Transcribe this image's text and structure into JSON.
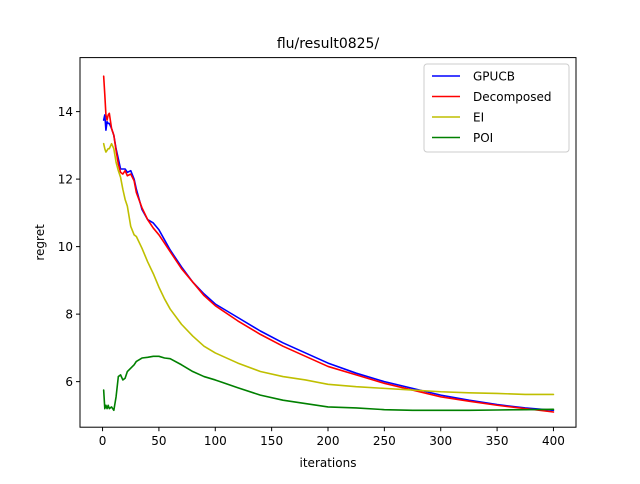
{
  "chart_data": {
    "type": "line",
    "title": "flu/result0825/",
    "xlabel": "iterations",
    "ylabel": "regret",
    "xlim": [
      -20,
      420
    ],
    "ylim": [
      4.65,
      15.6
    ],
    "xticks": [
      0,
      50,
      100,
      150,
      200,
      250,
      300,
      350,
      400
    ],
    "yticks": [
      6,
      8,
      10,
      12,
      14
    ],
    "grid": false,
    "legend_position": "top-right",
    "series": [
      {
        "name": "GPUCB",
        "color": "#0000ff",
        "x": [
          1,
          2,
          3,
          4,
          5,
          6,
          8,
          10,
          12,
          14,
          16,
          18,
          20,
          22,
          25,
          28,
          30,
          35,
          40,
          45,
          50,
          55,
          60,
          70,
          80,
          90,
          100,
          120,
          140,
          160,
          180,
          200,
          225,
          250,
          275,
          300,
          325,
          350,
          375,
          400
        ],
        "values": [
          13.75,
          13.9,
          13.45,
          13.7,
          13.65,
          13.65,
          13.5,
          13.3,
          12.9,
          12.6,
          12.3,
          12.3,
          12.3,
          12.2,
          12.25,
          12.0,
          11.7,
          11.1,
          10.8,
          10.7,
          10.5,
          10.2,
          9.9,
          9.4,
          8.95,
          8.6,
          8.3,
          7.9,
          7.5,
          7.15,
          6.85,
          6.55,
          6.25,
          6.0,
          5.8,
          5.6,
          5.45,
          5.32,
          5.22,
          5.15
        ]
      },
      {
        "name": "Decomposed",
        "color": "#ff0000",
        "x": [
          1,
          2,
          3,
          4,
          5,
          6,
          8,
          10,
          12,
          14,
          16,
          18,
          20,
          22,
          25,
          28,
          30,
          35,
          40,
          45,
          50,
          55,
          60,
          70,
          80,
          90,
          100,
          120,
          140,
          160,
          180,
          200,
          225,
          250,
          275,
          300,
          325,
          350,
          375,
          400
        ],
        "values": [
          15.05,
          14.5,
          13.9,
          13.75,
          13.9,
          13.95,
          13.5,
          13.3,
          12.85,
          12.45,
          12.2,
          12.15,
          12.25,
          12.1,
          12.15,
          11.95,
          11.6,
          11.15,
          10.8,
          10.55,
          10.35,
          10.1,
          9.85,
          9.35,
          8.95,
          8.55,
          8.25,
          7.8,
          7.4,
          7.05,
          6.75,
          6.45,
          6.2,
          5.95,
          5.75,
          5.55,
          5.42,
          5.3,
          5.2,
          5.1
        ]
      },
      {
        "name": "EI",
        "color": "#bfbf00",
        "x": [
          1,
          2,
          3,
          4,
          5,
          6,
          8,
          10,
          12,
          14,
          16,
          18,
          20,
          22,
          25,
          28,
          30,
          35,
          40,
          45,
          50,
          55,
          60,
          70,
          80,
          90,
          100,
          120,
          140,
          160,
          180,
          200,
          225,
          250,
          275,
          300,
          325,
          350,
          375,
          400
        ],
        "values": [
          13.05,
          12.9,
          12.8,
          12.85,
          12.9,
          12.9,
          13.05,
          12.9,
          12.5,
          12.25,
          12.05,
          11.7,
          11.4,
          11.2,
          10.6,
          10.35,
          10.3,
          9.95,
          9.55,
          9.2,
          8.8,
          8.45,
          8.15,
          7.7,
          7.35,
          7.05,
          6.85,
          6.55,
          6.3,
          6.15,
          6.05,
          5.92,
          5.85,
          5.8,
          5.75,
          5.7,
          5.67,
          5.65,
          5.62,
          5.62
        ]
      },
      {
        "name": "POI",
        "color": "#008000",
        "x": [
          1,
          2,
          3,
          4,
          5,
          6,
          8,
          10,
          12,
          14,
          16,
          18,
          20,
          22,
          25,
          28,
          30,
          35,
          40,
          45,
          50,
          55,
          60,
          70,
          80,
          90,
          100,
          120,
          140,
          160,
          180,
          200,
          225,
          250,
          275,
          300,
          325,
          350,
          375,
          400
        ],
        "values": [
          5.75,
          5.2,
          5.3,
          5.2,
          5.3,
          5.2,
          5.25,
          5.15,
          5.55,
          6.15,
          6.2,
          6.05,
          6.1,
          6.3,
          6.4,
          6.5,
          6.6,
          6.7,
          6.72,
          6.75,
          6.75,
          6.7,
          6.68,
          6.5,
          6.3,
          6.15,
          6.05,
          5.82,
          5.6,
          5.45,
          5.35,
          5.25,
          5.22,
          5.17,
          5.15,
          5.15,
          5.15,
          5.16,
          5.17,
          5.18
        ]
      }
    ]
  }
}
